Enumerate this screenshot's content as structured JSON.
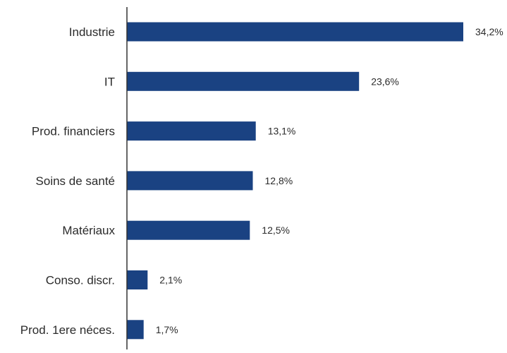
{
  "chart_data": {
    "type": "bar",
    "orientation": "horizontal",
    "categories": [
      "Industrie",
      "IT",
      "Prod. financiers",
      "Soins de santé",
      "Matériaux",
      "Conso. discr.",
      "Prod. 1ere néces."
    ],
    "values": [
      34.2,
      23.6,
      13.1,
      12.8,
      12.5,
      2.1,
      1.7
    ],
    "value_labels": [
      "34,2%",
      "23,6%",
      "13,1%",
      "12,8%",
      "12,5%",
      "2,1%",
      "1,7%"
    ],
    "xlim": [
      0,
      34.2
    ],
    "grid": false,
    "colors": {
      "bar": "#1a4282",
      "axis": "#333333",
      "text": "#2b2b2b"
    }
  }
}
